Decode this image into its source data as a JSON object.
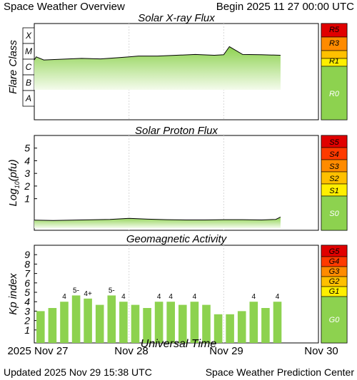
{
  "header": {
    "title": "Space Weather Overview",
    "begin": "Begin 2025 11 27 00:00 UTC"
  },
  "footer": {
    "updated": "Updated 2025 Nov 29 15:38 UTC",
    "center": "Space Weather Prediction Center"
  },
  "colors": {
    "green": "#8dd24f",
    "green_light": "#d4f0b4",
    "yellow": "#ffef00",
    "gold": "#ffc000",
    "orange": "#ff8b00",
    "red_orange": "#ff3a00",
    "red": "#e00000"
  },
  "chart_data": [
    {
      "type": "area",
      "title": "Solar X-ray Flux",
      "ylabel": "Flare Class",
      "y_bands": [
        "X",
        "M",
        "C",
        "B",
        "A"
      ],
      "scale_labels": [
        {
          "label": "R5",
          "color": "#e00000"
        },
        {
          "label": "R3",
          "color": "#ff8b00"
        },
        {
          "label": "R1",
          "color": "#ffef00"
        },
        {
          "label": "R0",
          "color": "#8dd24f"
        }
      ],
      "xlim": [
        0,
        3
      ],
      "x": [
        0,
        0.02,
        0.1,
        0.3,
        0.5,
        0.7,
        0.9,
        1.0,
        1.1,
        1.3,
        1.5,
        1.7,
        1.9,
        2.0,
        2.06,
        2.2,
        2.4,
        2.6
      ],
      "y": [
        -6.05,
        -5.85,
        -6.05,
        -6.0,
        -5.95,
        -5.98,
        -5.9,
        -5.85,
        -5.8,
        -5.8,
        -5.75,
        -5.7,
        -5.75,
        -5.72,
        -5.2,
        -5.7,
        -5.72,
        -5.75
      ]
    },
    {
      "type": "area",
      "title": "Solar Proton Flux",
      "ylabel": "Log10(pfu)",
      "ylabel_main": "Log",
      "ylabel_sub": "10",
      "ylabel_tail": "(pfu)",
      "ylim": [
        -1.5,
        6
      ],
      "yticks": [
        "5",
        "4",
        "3",
        "2",
        "1"
      ],
      "scale_labels": [
        {
          "label": "S5",
          "color": "#e00000"
        },
        {
          "label": "S4",
          "color": "#ff3a00"
        },
        {
          "label": "S3",
          "color": "#ff8b00"
        },
        {
          "label": "S2",
          "color": "#ffc000"
        },
        {
          "label": "S1",
          "color": "#ffef00"
        },
        {
          "label": "S0",
          "color": "#8dd24f"
        }
      ],
      "xlim": [
        0,
        3
      ],
      "x": [
        0,
        0.2,
        0.4,
        0.6,
        0.8,
        1.0,
        1.2,
        1.4,
        1.6,
        1.8,
        2.0,
        2.2,
        2.4,
        2.55,
        2.6
      ],
      "y": [
        -0.7,
        -0.72,
        -0.7,
        -0.67,
        -0.64,
        -0.55,
        -0.62,
        -0.66,
        -0.68,
        -0.68,
        -0.66,
        -0.66,
        -0.68,
        -0.64,
        -0.45
      ]
    },
    {
      "type": "bar",
      "title": "Geomagnetic Activity",
      "ylabel": "Kp index",
      "ylim": [
        0,
        10
      ],
      "yticks": [
        "9",
        "8",
        "7",
        "6",
        "5",
        "4",
        "3",
        "2",
        "1"
      ],
      "scale_labels": [
        {
          "label": "G5",
          "color": "#e00000"
        },
        {
          "label": "G4",
          "color": "#ff3a00"
        },
        {
          "label": "G3",
          "color": "#ff8b00"
        },
        {
          "label": "G2",
          "color": "#ffc000"
        },
        {
          "label": "G1",
          "color": "#ffef00"
        },
        {
          "label": "G0",
          "color": "#8dd24f"
        }
      ],
      "xlim": [
        0,
        3
      ],
      "values": [
        3.0,
        3.33,
        4.0,
        4.67,
        4.33,
        3.67,
        4.67,
        4.0,
        3.67,
        3.33,
        4.0,
        4.0,
        3.67,
        4.0,
        3.67,
        2.67,
        2.67,
        3.0,
        4.0,
        3.33,
        4.0
      ],
      "bar_labels": [
        "",
        "",
        "4",
        "5-",
        "4+",
        "",
        "5-",
        "4",
        "",
        "",
        "4",
        "4",
        "",
        "4",
        "",
        "",
        "",
        "",
        "4",
        "",
        "4"
      ]
    }
  ],
  "x_axis": {
    "title": "Universal Time",
    "date_labels": [
      "2025 Nov 27",
      "Nov 28",
      "Nov 29",
      "Nov 30"
    ]
  }
}
